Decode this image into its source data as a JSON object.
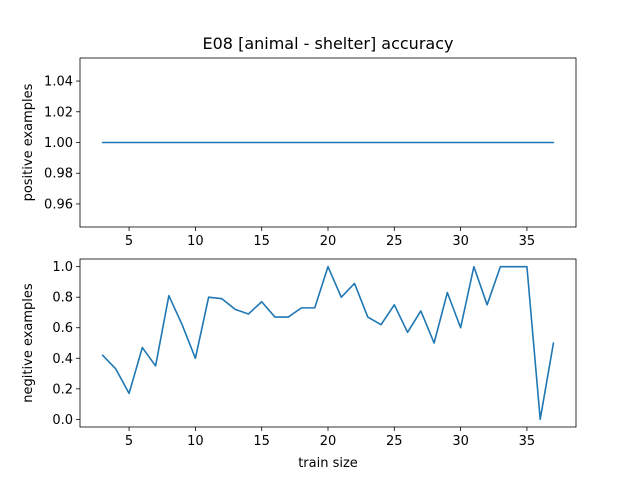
{
  "chart_data": [
    {
      "type": "line",
      "title": "E08 [animal - shelter] accuracy",
      "ylabel": "positive examples",
      "xlabel": "",
      "xlim": [
        1.3,
        38.7
      ],
      "ylim": [
        0.945,
        1.055
      ],
      "xticks": [
        5,
        10,
        15,
        20,
        25,
        30,
        35
      ],
      "xtick_labels": [
        "5",
        "10",
        "15",
        "20",
        "25",
        "30",
        "35"
      ],
      "yticks": [
        0.96,
        0.98,
        1.0,
        1.02,
        1.04
      ],
      "ytick_labels": [
        "0.96",
        "0.98",
        "1.00",
        "1.02",
        "1.04"
      ],
      "grid": false,
      "color": "#1f77b4",
      "x": [
        3,
        4,
        5,
        6,
        7,
        8,
        9,
        10,
        11,
        12,
        13,
        14,
        15,
        16,
        17,
        18,
        19,
        20,
        21,
        22,
        23,
        24,
        25,
        26,
        27,
        28,
        29,
        30,
        31,
        32,
        33,
        34,
        35,
        36,
        37
      ],
      "y": [
        1,
        1,
        1,
        1,
        1,
        1,
        1,
        1,
        1,
        1,
        1,
        1,
        1,
        1,
        1,
        1,
        1,
        1,
        1,
        1,
        1,
        1,
        1,
        1,
        1,
        1,
        1,
        1,
        1,
        1,
        1,
        1,
        1,
        1,
        1
      ]
    },
    {
      "type": "line",
      "title": "",
      "ylabel": "negitive examples",
      "xlabel": "train size",
      "xlim": [
        1.3,
        38.7
      ],
      "ylim": [
        -0.05,
        1.05
      ],
      "xticks": [
        5,
        10,
        15,
        20,
        25,
        30,
        35
      ],
      "xtick_labels": [
        "5",
        "10",
        "15",
        "20",
        "25",
        "30",
        "35"
      ],
      "yticks": [
        0.0,
        0.2,
        0.4,
        0.6,
        0.8,
        1.0
      ],
      "ytick_labels": [
        "0.0",
        "0.2",
        "0.4",
        "0.6",
        "0.8",
        "1.0"
      ],
      "grid": false,
      "color": "#1f77b4",
      "x": [
        3,
        4,
        5,
        6,
        7,
        8,
        9,
        10,
        11,
        12,
        13,
        14,
        15,
        16,
        17,
        18,
        19,
        20,
        21,
        22,
        23,
        24,
        25,
        26,
        27,
        28,
        29,
        30,
        31,
        32,
        33,
        34,
        35,
        36,
        37
      ],
      "y": [
        0.42,
        0.33,
        0.17,
        0.47,
        0.35,
        0.81,
        0.62,
        0.4,
        0.8,
        0.79,
        0.72,
        0.69,
        0.77,
        0.67,
        0.67,
        0.73,
        0.73,
        1.0,
        0.8,
        0.89,
        0.67,
        0.62,
        0.75,
        0.57,
        0.71,
        0.5,
        0.83,
        0.6,
        1.0,
        0.75,
        1.0,
        1.0,
        1.0,
        0.0,
        0.5
      ]
    }
  ]
}
